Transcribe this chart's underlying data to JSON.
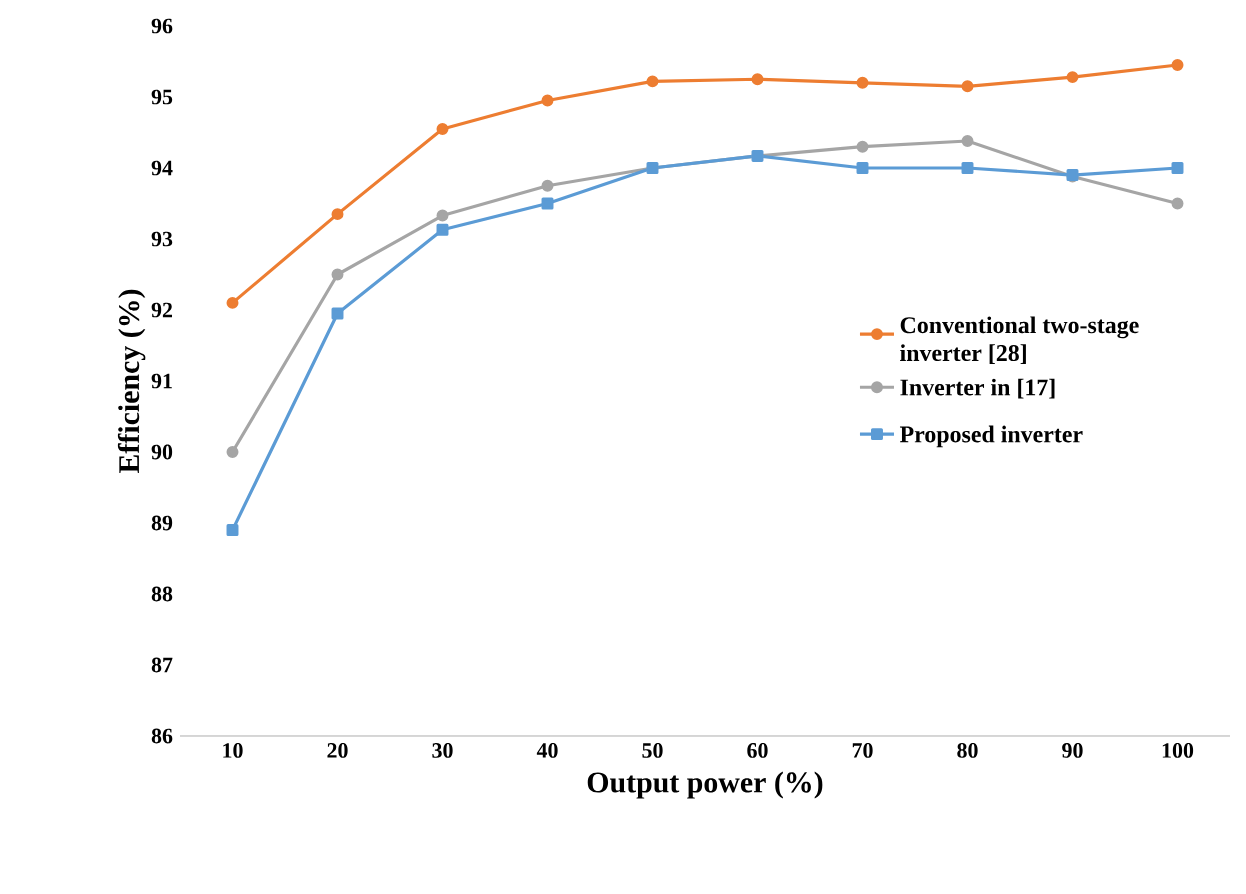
{
  "chart_data": {
    "type": "line",
    "xlabel": "Output power (%)",
    "ylabel": "Efficiency (%)",
    "categories": [
      "10",
      "20",
      "30",
      "40",
      "50",
      "60",
      "70",
      "80",
      "90",
      "100"
    ],
    "ylim": [
      86,
      96
    ],
    "yticks": [
      86,
      87,
      88,
      89,
      90,
      91,
      92,
      93,
      94,
      95,
      96
    ],
    "legend": "right",
    "line_style": "solid",
    "series": [
      {
        "name": "Conventional two-stage inverter [28]",
        "color": "#ed7d31",
        "marker": "circle",
        "values": [
          92.1,
          93.35,
          94.55,
          94.95,
          95.22,
          95.25,
          95.2,
          95.15,
          95.28,
          95.45
        ]
      },
      {
        "name": "Inverter in [17]",
        "color": "#a5a5a5",
        "marker": "circle",
        "values": [
          90.0,
          92.5,
          93.33,
          93.75,
          94.0,
          94.17,
          94.3,
          94.38,
          93.88,
          93.5
        ]
      },
      {
        "name": "Proposed inverter",
        "color": "#5b9bd5",
        "marker": "square",
        "values": [
          88.9,
          91.95,
          93.13,
          93.5,
          94.0,
          94.17,
          94.0,
          94.0,
          93.9,
          94.0
        ]
      }
    ]
  }
}
